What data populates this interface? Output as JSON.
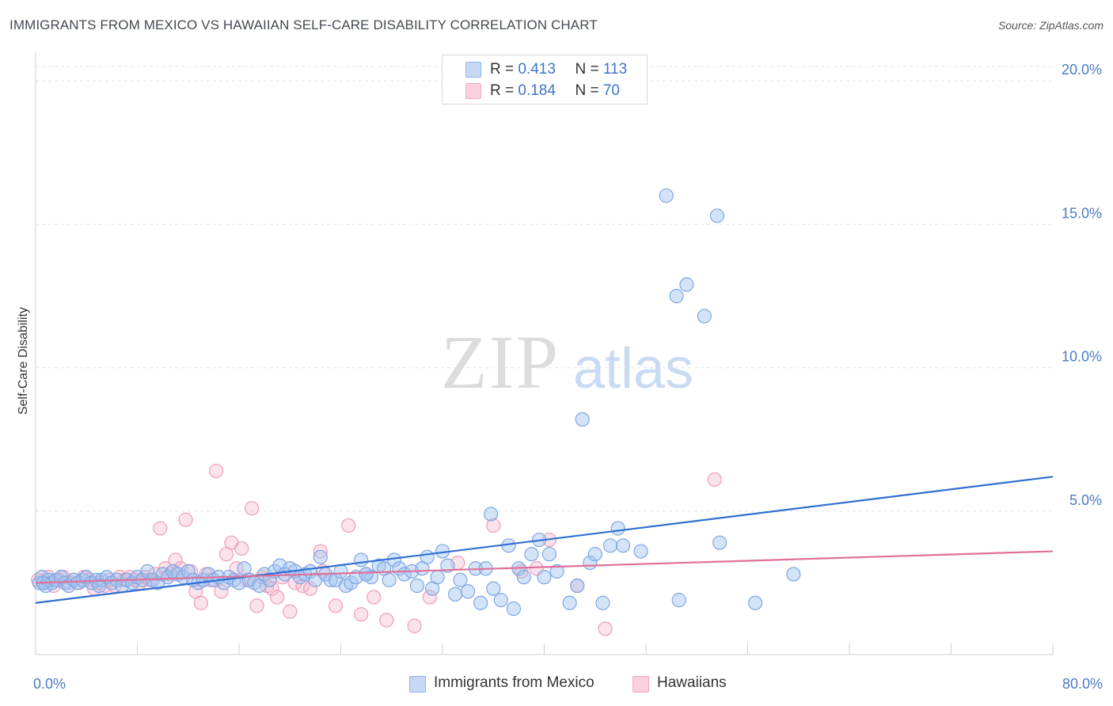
{
  "header": {
    "title": "IMMIGRANTS FROM MEXICO VS HAWAIIAN SELF-CARE DISABILITY CORRELATION CHART",
    "source": "Source: ZipAtlas.com"
  },
  "watermark": {
    "zip": "ZIP",
    "atlas": "atlas"
  },
  "legend": {
    "rows": [
      {
        "r_label": "R = ",
        "r_value": "0.413",
        "n_label": "N = ",
        "n_value": "113"
      },
      {
        "r_label": "R = ",
        "r_value": "0.184",
        "n_label": "N = ",
        "n_value": "70"
      }
    ]
  },
  "chart_data": {
    "type": "scatter",
    "title": "IMMIGRANTS FROM MEXICO VS HAWAIIAN SELF-CARE DISABILITY CORRELATION CHART",
    "xlabel": "",
    "ylabel": "Self-Care Disability",
    "xlim": [
      0,
      80
    ],
    "ylim": [
      0,
      21
    ],
    "y_ticks": [
      {
        "value": 5,
        "label": "5.0%"
      },
      {
        "value": 10,
        "label": "10.0%"
      },
      {
        "value": 15,
        "label": "15.0%"
      },
      {
        "value": 20,
        "label": "20.0%"
      }
    ],
    "x_tick_labels": [
      {
        "value": 0,
        "label": "0.0%"
      },
      {
        "value": 80,
        "label": "80.0%"
      }
    ],
    "x_minor_ticks": [
      8,
      16,
      24,
      32,
      40,
      48,
      56,
      64,
      72,
      80
    ],
    "grid": true,
    "legend_position": "top-center",
    "colors": {
      "mexico": "#8fb4ea",
      "hawaiians": "#f3a8c0",
      "mexico_line": "#2f6fd0",
      "hawaiians_line": "#e07098",
      "tick_text": "#4a7bc4"
    },
    "series": [
      {
        "name": "Immigrants from Mexico",
        "color": "#8fb4ea",
        "trend": {
          "x": [
            0,
            80
          ],
          "y": [
            1.8,
            6.2
          ]
        },
        "points": [
          [
            0.3,
            2.5
          ],
          [
            0.5,
            2.7
          ],
          [
            0.8,
            2.4
          ],
          [
            1.0,
            2.6
          ],
          [
            1.3,
            2.5
          ],
          [
            1.6,
            2.6
          ],
          [
            2.0,
            2.7
          ],
          [
            2.3,
            2.5
          ],
          [
            2.6,
            2.4
          ],
          [
            3.0,
            2.6
          ],
          [
            3.3,
            2.5
          ],
          [
            3.7,
            2.6
          ],
          [
            4.0,
            2.7
          ],
          [
            4.4,
            2.5
          ],
          [
            4.8,
            2.6
          ],
          [
            5.2,
            2.6
          ],
          [
            5.6,
            2.7
          ],
          [
            6.0,
            2.5
          ],
          [
            6.4,
            2.6
          ],
          [
            6.8,
            2.4
          ],
          [
            7.2,
            2.6
          ],
          [
            7.6,
            2.5
          ],
          [
            8.0,
            2.7
          ],
          [
            8.4,
            2.6
          ],
          [
            8.8,
            2.9
          ],
          [
            9.2,
            2.6
          ],
          [
            9.6,
            2.5
          ],
          [
            10.0,
            2.8
          ],
          [
            10.4,
            2.7
          ],
          [
            10.8,
            2.9
          ],
          [
            11.2,
            2.8
          ],
          [
            11.6,
            2.7
          ],
          [
            12.0,
            2.9
          ],
          [
            12.4,
            2.6
          ],
          [
            12.8,
            2.5
          ],
          [
            13.2,
            2.6
          ],
          [
            13.6,
            2.8
          ],
          [
            14.0,
            2.6
          ],
          [
            14.4,
            2.7
          ],
          [
            14.8,
            2.5
          ],
          [
            15.2,
            2.7
          ],
          [
            15.6,
            2.6
          ],
          [
            16.0,
            2.5
          ],
          [
            16.4,
            3.0
          ],
          [
            16.8,
            2.6
          ],
          [
            17.2,
            2.5
          ],
          [
            17.6,
            2.4
          ],
          [
            18.0,
            2.8
          ],
          [
            18.4,
            2.6
          ],
          [
            18.8,
            2.9
          ],
          [
            19.2,
            3.1
          ],
          [
            19.6,
            2.8
          ],
          [
            20.0,
            3.0
          ],
          [
            20.4,
            2.9
          ],
          [
            20.8,
            2.7
          ],
          [
            21.2,
            2.8
          ],
          [
            21.6,
            2.9
          ],
          [
            22.0,
            2.6
          ],
          [
            22.4,
            3.4
          ],
          [
            22.8,
            2.8
          ],
          [
            23.2,
            2.6
          ],
          [
            23.6,
            2.6
          ],
          [
            24.0,
            2.9
          ],
          [
            24.4,
            2.4
          ],
          [
            24.8,
            2.5
          ],
          [
            25.2,
            2.7
          ],
          [
            25.6,
            3.3
          ],
          [
            26.0,
            2.8
          ],
          [
            26.4,
            2.7
          ],
          [
            27.0,
            3.1
          ],
          [
            27.4,
            3.0
          ],
          [
            27.8,
            2.6
          ],
          [
            28.2,
            3.3
          ],
          [
            28.6,
            3.0
          ],
          [
            29.0,
            2.8
          ],
          [
            29.6,
            2.9
          ],
          [
            30.0,
            2.4
          ],
          [
            30.4,
            3.0
          ],
          [
            30.8,
            3.4
          ],
          [
            31.2,
            2.3
          ],
          [
            31.6,
            2.7
          ],
          [
            32.0,
            3.6
          ],
          [
            32.4,
            3.1
          ],
          [
            33.0,
            2.1
          ],
          [
            33.4,
            2.6
          ],
          [
            34.0,
            2.2
          ],
          [
            34.6,
            3.0
          ],
          [
            35.0,
            1.8
          ],
          [
            35.4,
            3.0
          ],
          [
            36.0,
            2.3
          ],
          [
            36.6,
            1.9
          ],
          [
            37.2,
            3.8
          ],
          [
            37.6,
            1.6
          ],
          [
            38.0,
            3.0
          ],
          [
            38.4,
            2.7
          ],
          [
            39.0,
            3.5
          ],
          [
            39.6,
            4.0
          ],
          [
            40.0,
            2.7
          ],
          [
            40.4,
            3.5
          ],
          [
            41.0,
            2.9
          ],
          [
            42.0,
            1.8
          ],
          [
            42.6,
            2.4
          ],
          [
            43.0,
            8.2
          ],
          [
            43.6,
            3.2
          ],
          [
            44.0,
            3.5
          ],
          [
            44.6,
            1.8
          ],
          [
            45.2,
            3.8
          ],
          [
            45.8,
            4.4
          ],
          [
            46.2,
            3.8
          ],
          [
            47.6,
            3.6
          ],
          [
            50.4,
            12.5
          ],
          [
            51.2,
            12.9
          ],
          [
            52.6,
            11.8
          ],
          [
            53.6,
            15.3
          ],
          [
            53.8,
            3.9
          ],
          [
            59.6,
            2.8
          ],
          [
            0.6,
            2.5
          ],
          [
            5.0,
            2.4
          ],
          [
            35.8,
            4.9
          ],
          [
            50.6,
            1.9
          ],
          [
            56.6,
            1.8
          ],
          [
            26.0,
            2.8
          ],
          [
            49.6,
            16.0
          ]
        ]
      },
      {
        "name": "Hawaiians",
        "color": "#f3a8c0",
        "trend": {
          "x": [
            0,
            80
          ],
          "y": [
            2.5,
            3.6
          ]
        },
        "points": [
          [
            0.2,
            2.6
          ],
          [
            0.6,
            2.5
          ],
          [
            1.0,
            2.7
          ],
          [
            1.4,
            2.4
          ],
          [
            1.8,
            2.6
          ],
          [
            2.2,
            2.7
          ],
          [
            2.6,
            2.5
          ],
          [
            3.0,
            2.6
          ],
          [
            3.4,
            2.5
          ],
          [
            3.8,
            2.7
          ],
          [
            4.2,
            2.6
          ],
          [
            4.6,
            2.3
          ],
          [
            5.0,
            2.5
          ],
          [
            5.4,
            2.4
          ],
          [
            5.8,
            2.6
          ],
          [
            6.2,
            2.4
          ],
          [
            6.6,
            2.7
          ],
          [
            7.0,
            2.6
          ],
          [
            7.4,
            2.7
          ],
          [
            7.8,
            2.6
          ],
          [
            8.2,
            2.5
          ],
          [
            8.6,
            2.7
          ],
          [
            9.0,
            2.6
          ],
          [
            9.4,
            2.8
          ],
          [
            9.8,
            4.4
          ],
          [
            10.2,
            3.0
          ],
          [
            10.6,
            2.8
          ],
          [
            11.0,
            3.3
          ],
          [
            11.4,
            3.0
          ],
          [
            11.8,
            4.7
          ],
          [
            12.2,
            2.9
          ],
          [
            12.6,
            2.2
          ],
          [
            13.0,
            1.8
          ],
          [
            13.4,
            2.8
          ],
          [
            13.8,
            2.6
          ],
          [
            14.2,
            6.4
          ],
          [
            14.6,
            2.2
          ],
          [
            15.0,
            3.5
          ],
          [
            15.4,
            3.9
          ],
          [
            15.8,
            3.0
          ],
          [
            16.2,
            3.7
          ],
          [
            16.6,
            2.6
          ],
          [
            17.0,
            5.1
          ],
          [
            17.4,
            1.7
          ],
          [
            17.8,
            2.7
          ],
          [
            18.2,
            2.4
          ],
          [
            18.6,
            2.3
          ],
          [
            19.0,
            2.0
          ],
          [
            19.4,
            2.7
          ],
          [
            20.0,
            1.5
          ],
          [
            20.4,
            2.5
          ],
          [
            21.0,
            2.4
          ],
          [
            21.6,
            2.3
          ],
          [
            22.4,
            3.6
          ],
          [
            22.6,
            2.9
          ],
          [
            23.6,
            1.7
          ],
          [
            24.6,
            4.5
          ],
          [
            25.6,
            1.4
          ],
          [
            26.6,
            2.0
          ],
          [
            27.6,
            1.2
          ],
          [
            29.8,
            1.0
          ],
          [
            31.0,
            2.0
          ],
          [
            33.2,
            3.2
          ],
          [
            36.0,
            4.5
          ],
          [
            38.2,
            2.9
          ],
          [
            39.4,
            3.0
          ],
          [
            40.4,
            4.0
          ],
          [
            42.6,
            2.4
          ],
          [
            44.8,
            0.9
          ],
          [
            53.4,
            6.1
          ]
        ]
      }
    ]
  },
  "bottom_legend": [
    {
      "label": "Immigrants from Mexico"
    },
    {
      "label": "Hawaiians"
    }
  ]
}
